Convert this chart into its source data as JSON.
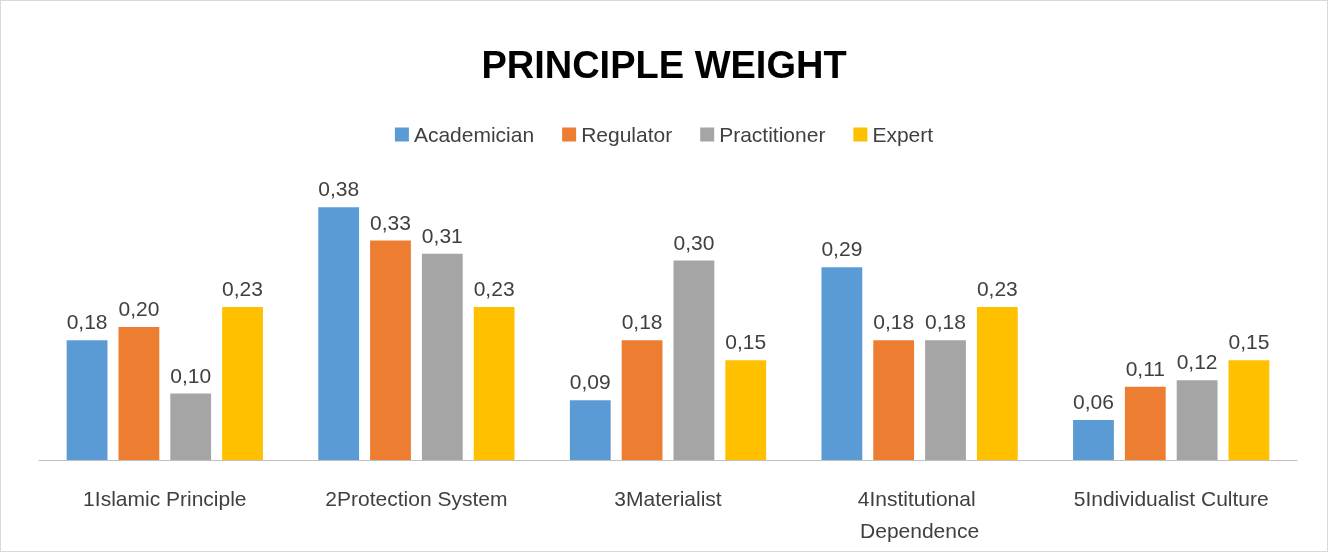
{
  "chart_data": {
    "type": "bar",
    "title": "PRINCIPLE WEIGHT",
    "categories": [
      "1Islamic Principle",
      "2Protection System",
      "3Materialist",
      "4Institutional Dependence",
      "5Individualist Culture"
    ],
    "series": [
      {
        "name": "Academician",
        "color": "#5b9bd5",
        "values": [
          0.18,
          0.38,
          0.09,
          0.29,
          0.06
        ],
        "value_labels": [
          "0,18",
          "0,38",
          "0,09",
          "0,29",
          "0,06"
        ]
      },
      {
        "name": "Regulator",
        "color": "#ed7d31",
        "values": [
          0.2,
          0.33,
          0.18,
          0.18,
          0.11
        ],
        "value_labels": [
          "0,20",
          "0,33",
          "0,18",
          "0,18",
          "0,11"
        ]
      },
      {
        "name": "Practitioner",
        "color": "#a5a5a5",
        "values": [
          0.1,
          0.31,
          0.3,
          0.18,
          0.12
        ],
        "value_labels": [
          "0,10",
          "0,31",
          "0,30",
          "0,18",
          "0,12"
        ]
      },
      {
        "name": "Expert",
        "color": "#ffc000",
        "values": [
          0.23,
          0.23,
          0.15,
          0.23,
          0.15
        ],
        "value_labels": [
          "0,23",
          "0,23",
          "0,15",
          "0,23",
          "0,15"
        ]
      }
    ],
    "legend": "top",
    "tick_labels": "x"
  }
}
